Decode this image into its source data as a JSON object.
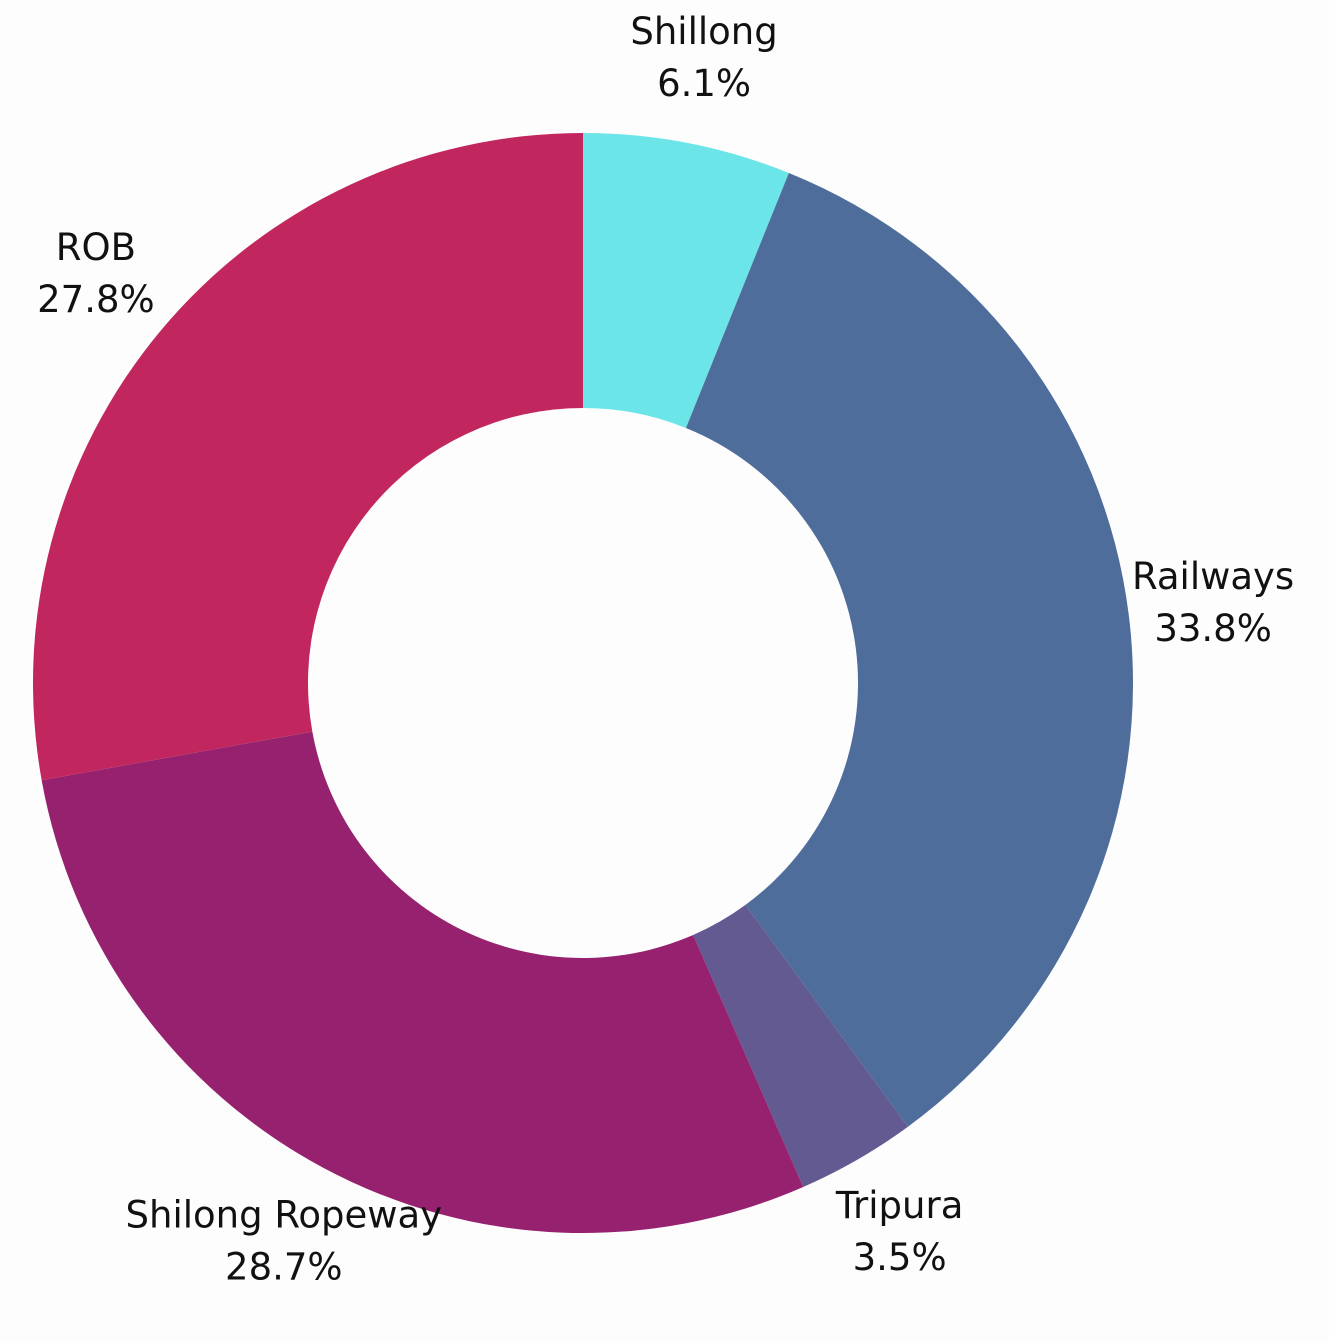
{
  "chart_data": {
    "type": "donut",
    "categories": [
      "Shillong",
      "Railways",
      "Tripura",
      "Shilong Ropeway",
      "ROB"
    ],
    "values": [
      6.1,
      33.8,
      3.5,
      28.7,
      27.8
    ],
    "value_labels": [
      "6.1%",
      "33.8%",
      "3.5%",
      "28.7%",
      "27.8%"
    ],
    "colors": [
      "#6ce5e8",
      "#4f6d9a",
      "#635a92",
      "#96216e",
      "#c1275e"
    ]
  }
}
